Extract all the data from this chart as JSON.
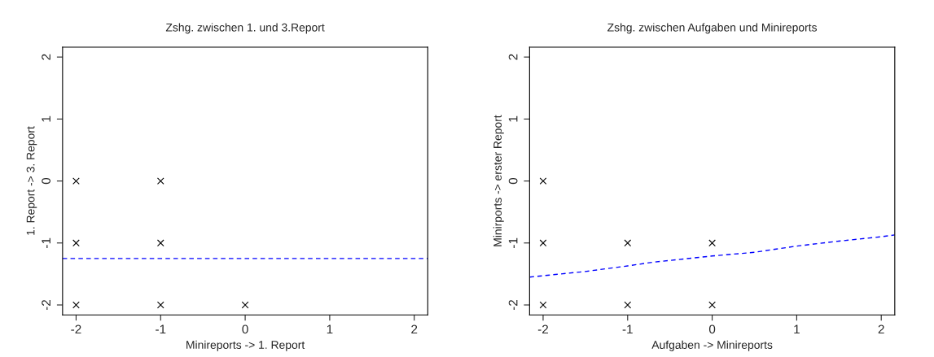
{
  "chart_data": [
    {
      "type": "scatter",
      "title": "Zshg. zwischen 1. und 3.Report",
      "xlabel": "Minireports -> 1. Report",
      "ylabel": "1. Report -> 3. Report",
      "xlim": [
        -2.16,
        2.16
      ],
      "ylim": [
        -2.16,
        2.16
      ],
      "xticks": [
        -2,
        -1,
        0,
        1,
        2
      ],
      "yticks": [
        -2,
        -1,
        0,
        1,
        2
      ],
      "series": [
        {
          "type": "scatter",
          "x": [
            -2,
            -1,
            -2,
            -1,
            -2,
            -1,
            0
          ],
          "values": [
            0,
            0,
            -1,
            -1,
            -2,
            -2,
            -2
          ],
          "color": "#000000",
          "marker": "cross"
        },
        {
          "type": "line",
          "x": [
            -2.16,
            2.16
          ],
          "values": [
            -1.25,
            -1.25
          ],
          "color": "#0000ff",
          "line_style": "dashed"
        }
      ]
    },
    {
      "type": "scatter",
      "title": "Zshg. zwischen Aufgaben und Minireports",
      "xlabel": "Aufgaben -> Minireports",
      "ylabel": "Minirports -> erster Report",
      "xlim": [
        -2.16,
        2.16
      ],
      "ylim": [
        -2.16,
        2.16
      ],
      "xticks": [
        -2,
        -1,
        0,
        1,
        2
      ],
      "yticks": [
        -2,
        -1,
        0,
        1,
        2
      ],
      "series": [
        {
          "type": "scatter",
          "x": [
            -2,
            -2,
            -1,
            0,
            -2,
            -1,
            0
          ],
          "values": [
            0,
            -1,
            -1,
            -1,
            -2,
            -2,
            -2
          ],
          "color": "#000000",
          "marker": "cross"
        },
        {
          "type": "line",
          "x": [
            -2.16,
            -1.5,
            -1,
            -0.7,
            0,
            0.5,
            1,
            1.5,
            2,
            2.16
          ],
          "values": [
            -1.55,
            -1.46,
            -1.37,
            -1.31,
            -1.21,
            -1.15,
            -1.05,
            -0.97,
            -0.9,
            -0.87
          ],
          "color": "#0000ff",
          "line_style": "dashed"
        }
      ]
    }
  ]
}
